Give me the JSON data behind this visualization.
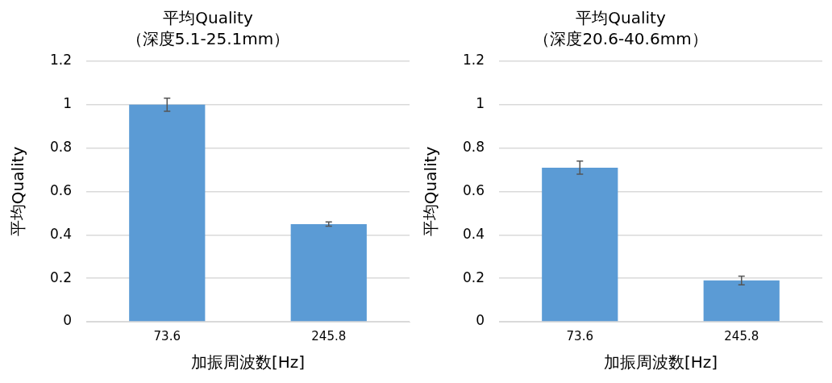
{
  "chart_data": [
    {
      "type": "bar",
      "title": "平均Quality",
      "subtitle": "（深度5.1-25.1mm）",
      "xlabel": "加振周波数[Hz]",
      "ylabel": "平均Quality",
      "categories": [
        "73.6",
        "245.8"
      ],
      "values": [
        1.0,
        0.45
      ],
      "errors": [
        0.03,
        0.01
      ],
      "color": "#5b9bd5",
      "ylim": [
        0,
        1.2
      ],
      "yticks": [
        0,
        0.2,
        0.4,
        0.6,
        0.8,
        1,
        1.2
      ],
      "grid": "y"
    },
    {
      "type": "bar",
      "title": "平均Quality",
      "subtitle": "（深度20.6-40.6mm）",
      "xlabel": "加振周波数[Hz]",
      "ylabel": "平均Quality",
      "categories": [
        "73.6",
        "245.8"
      ],
      "values": [
        0.71,
        0.19
      ],
      "errors": [
        0.03,
        0.02
      ],
      "color": "#5b9bd5",
      "ylim": [
        0,
        1.2
      ],
      "yticks": [
        0,
        0.2,
        0.4,
        0.6,
        0.8,
        1,
        1.2
      ],
      "grid": "y"
    }
  ]
}
